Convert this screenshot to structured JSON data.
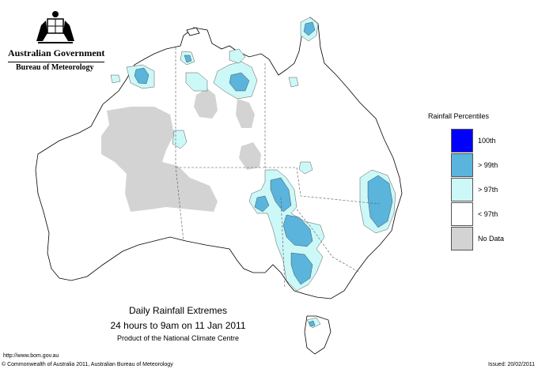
{
  "header": {
    "government": "Australian Government",
    "bureau": "Bureau of Meteorology"
  },
  "legend": {
    "title": "Rainfall Percentiles",
    "items": [
      {
        "label": "100th",
        "color": "#0000ff"
      },
      {
        "label": "> 99th",
        "color": "#5ab4dc"
      },
      {
        "label": "> 97th",
        "color": "#cdf8f8"
      },
      {
        "label": "< 97th",
        "color": "#ffffff"
      },
      {
        "label": "No Data",
        "color": "#d3d3d3"
      }
    ]
  },
  "map_title": {
    "line1": "Daily Rainfall Extremes",
    "line2": "24 hours to 9am on 11 Jan 2011",
    "line3": "Product of the National Climate Centre"
  },
  "footer": {
    "url": "http://www.bom.gov.au",
    "copyright": "© Commonwealth of Australia 2011, Australian Bureau of Meteorology",
    "issued": "Issued: 20/02/2011"
  },
  "colors": {
    "p99": "#5ab4dc",
    "p97": "#cdf8f8",
    "nodata": "#d3d3d3",
    "coast": "#000000",
    "border": "#555555"
  }
}
